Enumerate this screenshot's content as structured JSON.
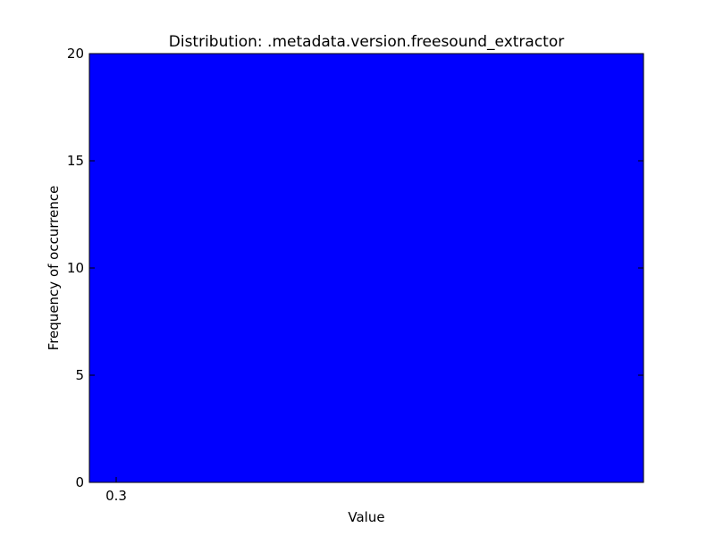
{
  "chart_data": {
    "type": "bar",
    "title": "Distribution: .metadata.version.freesound_extractor",
    "xlabel": "Value",
    "ylabel": "Frequency of occurrence",
    "categories": [
      "0.3"
    ],
    "values": [
      20
    ],
    "ylim": [
      0,
      20
    ],
    "yticks": [
      0,
      5,
      10,
      15,
      20
    ],
    "grid": true,
    "bar_color": "#0000ff",
    "frame_color": "#000000",
    "background": "#ffffff"
  }
}
